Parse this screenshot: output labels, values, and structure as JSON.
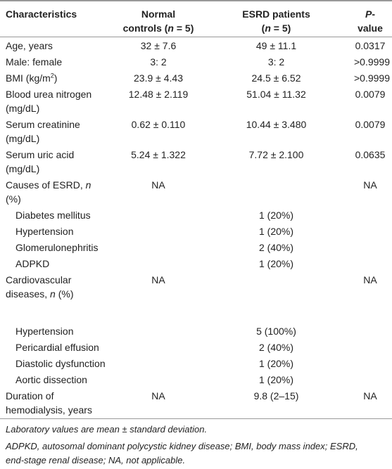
{
  "table": {
    "columns": [
      "Characteristics",
      [
        [
          "Normal"
        ],
        [
          "controls (",
          {
            "text": "n",
            "italic": true
          },
          " = 5)"
        ]
      ],
      [
        [
          "ESRD patients"
        ],
        [
          "(",
          {
            "text": "n",
            "italic": true
          },
          " = 5)"
        ]
      ],
      [
        [
          {
            "text": "P",
            "italic": true
          },
          "-value"
        ]
      ]
    ],
    "rows": [
      {
        "label": "Age, years",
        "values": [
          "32 ± 7.6",
          "49 ± 11.1",
          "0.0317"
        ]
      },
      {
        "label": "Male: female",
        "values": [
          "3: 2",
          "3: 2",
          ">0.9999"
        ]
      },
      {
        "label": [
          [
            "BMI (kg/m",
            {
              "text": "2",
              "sup": true
            },
            ")"
          ]
        ],
        "values": [
          "23.9 ± 4.43",
          "24.5 ± 6.52",
          ">0.9999"
        ]
      },
      {
        "label": [
          "Blood urea nitrogen",
          "(mg/dL)"
        ],
        "values": [
          "12.48 ± 2.119",
          "51.04 ± 11.32",
          "0.0079"
        ]
      },
      {
        "label": [
          "Serum creatinine",
          "(mg/dL)"
        ],
        "values": [
          "0.62 ± 0.110",
          "10.44 ± 3.480",
          "0.0079"
        ]
      },
      {
        "label": [
          "Serum uric acid",
          "(mg/dL)"
        ],
        "values": [
          "5.24 ± 1.322",
          "7.72 ± 2.100",
          "0.0635"
        ]
      },
      {
        "label": [
          [
            "Causes of ESRD, ",
            {
              "text": "n",
              "italic": true
            },
            " (%)"
          ]
        ],
        "values": [
          "NA",
          null,
          "NA"
        ]
      },
      {
        "label": "Diabetes mellitus",
        "indent": true,
        "values": [
          null,
          "1 (20%)",
          null
        ]
      },
      {
        "label": "Hypertension",
        "indent": true,
        "values": [
          null,
          "1 (20%)",
          null
        ]
      },
      {
        "label": "Glomerulonephritis",
        "indent": true,
        "values": [
          null,
          "2 (40%)",
          null
        ]
      },
      {
        "label": "ADPKD",
        "indent": true,
        "values": [
          null,
          "1 (20%)",
          null
        ]
      },
      {
        "label": [
          "Cardiovascular",
          [
            "diseases, ",
            {
              "text": "n",
              "italic": true
            },
            " (%)"
          ]
        ],
        "values": [
          "NA",
          null,
          "NA"
        ]
      },
      {
        "label": "Hypertension",
        "indent": true,
        "values": [
          null,
          "5 (100%)",
          null
        ]
      },
      {
        "label": "Pericardial effusion",
        "indent": true,
        "values": [
          null,
          "2 (40%)",
          null
        ]
      },
      {
        "label": "Diastolic dysfunction",
        "indent": true,
        "values": [
          null,
          "1 (20%)",
          null
        ]
      },
      {
        "label": "Aortic dissection",
        "indent": true,
        "values": [
          null,
          "1 (20%)",
          null
        ]
      },
      {
        "label": [
          "Duration of",
          "hemodialysis, years"
        ],
        "values": [
          "NA",
          "9.8 (2–15)",
          "NA"
        ]
      }
    ],
    "notes": [
      "Laboratory values are mean ± standard deviation.",
      [
        "ADPKD, autosomal dominant polycystic kidney disease; BMI, body mass index; ESRD,",
        "end-stage renal disease; NA, not applicable."
      ]
    ]
  }
}
